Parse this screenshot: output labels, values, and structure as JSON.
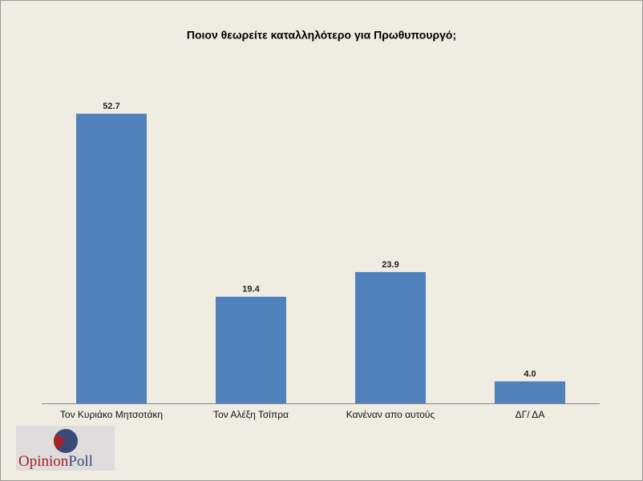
{
  "chart_data": {
    "type": "bar",
    "title": "Ποιον θεωρείτε καταλληλότερο για Πρωθυπουργό;",
    "categories": [
      "Τον Κυριάκο Μητσοτάκη",
      "Τον Αλέξη Τσίπρα",
      "Κανέναν απο αυτούς",
      "ΔΓ/ ΔΑ"
    ],
    "values": [
      52.7,
      19.4,
      23.9,
      4.0
    ],
    "value_labels": [
      "52.7",
      "19.4",
      "23.9",
      "4.0"
    ],
    "color": "#4f81bd",
    "ylim": [
      0,
      60
    ]
  },
  "logo": {
    "first": "Opinion",
    "second": "Poll"
  }
}
